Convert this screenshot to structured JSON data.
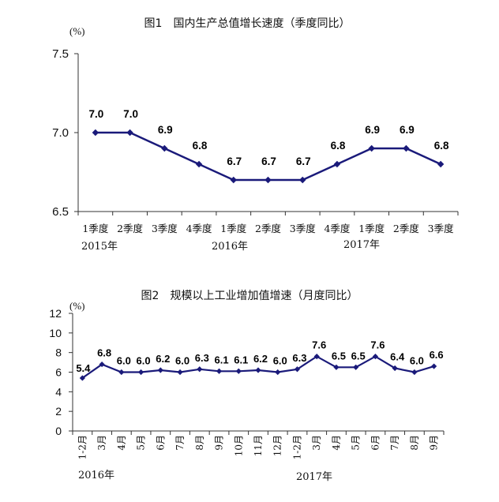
{
  "colors": {
    "series": "#1a1a7a",
    "axis": "#333333",
    "text": "#111111"
  },
  "chart_data": [
    {
      "type": "line",
      "title": "图1　国内生产总值增长速度（季度同比）",
      "ylabel": "(%)",
      "xlabel": "",
      "ylim": [
        6.5,
        7.5
      ],
      "yticks": [
        "6.5",
        "7.0",
        "7.5"
      ],
      "categories": [
        "1季度",
        "2季度",
        "3季度",
        "4季度",
        "1季度",
        "2季度",
        "3季度",
        "4季度",
        "1季度",
        "2季度",
        "3季度"
      ],
      "values": [
        7.0,
        7.0,
        6.9,
        6.8,
        6.7,
        6.7,
        6.7,
        6.8,
        6.9,
        6.9,
        6.8
      ],
      "labels": [
        "7.0",
        "7.0",
        "6.9",
        "6.8",
        "6.7",
        "6.7",
        "6.7",
        "6.8",
        "6.9",
        "6.9",
        "6.8"
      ],
      "year_groups": [
        "2015年",
        "2016年",
        "2017年"
      ]
    },
    {
      "type": "line",
      "title": "图2　规模以上工业增加值增速（月度同比）",
      "ylabel": "(%)",
      "xlabel": "",
      "ylim": [
        0,
        12
      ],
      "yticks": [
        "0",
        "2",
        "4",
        "6",
        "8",
        "10",
        "12"
      ],
      "categories": [
        "1-2月",
        "3月",
        "4月",
        "5月",
        "6月",
        "7月",
        "8月",
        "9月",
        "10月",
        "11月",
        "12月",
        "1-2月",
        "3月",
        "4月",
        "5月",
        "6月",
        "7月",
        "8月",
        "9月"
      ],
      "values": [
        5.4,
        6.8,
        6.0,
        6.0,
        6.2,
        6.0,
        6.3,
        6.1,
        6.1,
        6.2,
        6.0,
        6.3,
        7.6,
        6.5,
        6.5,
        7.6,
        6.4,
        6.0,
        6.6
      ],
      "labels": [
        "5.4",
        "6.8",
        "6.0",
        "6.0",
        "6.2",
        "6.0",
        "6.3",
        "6.1",
        "6.1",
        "6.2",
        "6.0",
        "6.3",
        "7.6",
        "6.5",
        "6.5",
        "7.6",
        "6.4",
        "6.0",
        "6.6"
      ],
      "year_groups": [
        "2016年",
        "2017年"
      ]
    }
  ]
}
